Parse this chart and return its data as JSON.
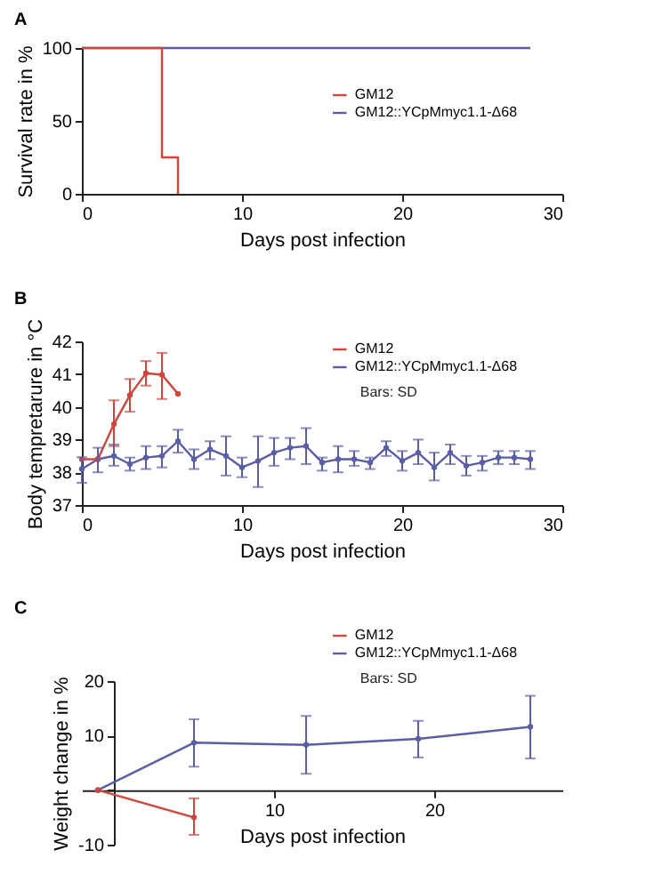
{
  "chart_data": [
    {
      "type": "step",
      "title": "A",
      "xlabel": "Days post infection",
      "ylabel": "Survival rate in %",
      "xlim": [
        0,
        30
      ],
      "xticks": [
        0,
        10,
        20,
        30
      ],
      "ylim": [
        0,
        100
      ],
      "yticks": [
        0,
        50,
        100
      ],
      "legend": "top right",
      "grid": false,
      "marker": "none",
      "series": [
        {
          "name": "GM12",
          "color": "#d0453c",
          "x": [
            0,
            5,
            6
          ],
          "values": [
            100,
            25,
            0
          ]
        },
        {
          "name": "GM12::YCpMmyc1.1-Δ68",
          "color": "#5a5ea6",
          "x": [
            0,
            28
          ],
          "values": [
            100,
            100
          ]
        }
      ]
    },
    {
      "type": "line",
      "title": "B",
      "xlabel": "Days post infection",
      "ylabel": "Body tempretarure in °C",
      "xlim": [
        0,
        30
      ],
      "xticks": [
        0,
        10,
        20,
        30
      ],
      "ylim": [
        37,
        42
      ],
      "yticks": [
        37,
        38,
        39,
        40,
        41,
        42
      ],
      "legend": "top right",
      "grid": false,
      "marker": "circle",
      "annotations": [
        "Bars: SD"
      ],
      "series": [
        {
          "name": "GM12",
          "color": "#d0453c",
          "x": [
            0,
            1,
            2,
            3,
            4,
            5,
            6
          ],
          "values": [
            38.4,
            38.4,
            39.47,
            40.36,
            41.03,
            40.98,
            40.4
          ],
          "errors": [
            null,
            null,
            [
              38.8,
              40.2
            ],
            [
              39.85,
              40.85
            ],
            [
              40.65,
              41.4
            ],
            [
              40.24,
              41.65
            ],
            null
          ]
        },
        {
          "name": "GM12::YCpMmyc1.1-Δ68",
          "color": "#5a5ea6",
          "x": [
            0,
            1,
            2,
            3,
            4,
            5,
            6,
            7,
            8,
            9,
            10,
            11,
            12,
            13,
            14,
            15,
            16,
            17,
            18,
            19,
            20,
            21,
            22,
            23,
            24,
            25,
            26,
            27,
            28
          ],
          "values": [
            38.1,
            38.4,
            38.5,
            38.25,
            38.45,
            38.5,
            38.95,
            38.4,
            38.7,
            38.5,
            38.15,
            38.35,
            38.6,
            38.75,
            38.8,
            38.3,
            38.4,
            38.4,
            38.3,
            38.75,
            38.35,
            38.6,
            38.15,
            38.6,
            38.2,
            38.3,
            38.45,
            38.45,
            38.4
          ],
          "errors": [
            [
              37.68,
              38.46
            ],
            [
              38.0,
              38.75
            ],
            [
              38.2,
              38.85
            ],
            [
              38.05,
              38.45
            ],
            [
              38.1,
              38.8
            ],
            [
              38.15,
              38.8
            ],
            [
              38.6,
              39.3
            ],
            [
              38.1,
              38.7
            ],
            [
              38.4,
              38.95
            ],
            [
              37.9,
              39.1
            ],
            [
              37.85,
              38.45
            ],
            [
              37.55,
              39.1
            ],
            [
              38.2,
              39.05
            ],
            [
              38.4,
              39.05
            ],
            [
              38.25,
              39.35
            ],
            [
              38.05,
              38.45
            ],
            [
              38.0,
              38.8
            ],
            [
              38.2,
              38.65
            ],
            [
              38.1,
              38.45
            ],
            [
              38.5,
              38.95
            ],
            [
              38.05,
              38.65
            ],
            [
              38.25,
              39.0
            ],
            [
              37.75,
              38.6
            ],
            [
              38.25,
              38.85
            ],
            [
              37.9,
              38.5
            ],
            [
              38.05,
              38.5
            ],
            [
              38.25,
              38.65
            ],
            [
              38.25,
              38.65
            ],
            [
              38.1,
              38.65
            ]
          ]
        }
      ]
    },
    {
      "type": "line",
      "title": "C",
      "xlabel": "Days post infection",
      "ylabel": "Weight change in %",
      "xlim": [
        -2,
        28
      ],
      "xticks": [
        10,
        20
      ],
      "ylim": [
        -10,
        20
      ],
      "yticks": [
        -10,
        {
          "value": 0,
          "label": null
        },
        10,
        20
      ],
      "legend": "top right",
      "grid": false,
      "marker": "circle",
      "annotations": [
        "Bars: SD"
      ],
      "series": [
        {
          "name": "GM12",
          "color": "#d0453c",
          "x": [
            -1,
            5
          ],
          "values": [
            0,
            -5
          ],
          "errors": [
            null,
            [
              -8.2,
              -1.5
            ]
          ]
        },
        {
          "name": "GM12::YCpMmyc1.1-Δ68",
          "color": "#5a5ea6",
          "x": [
            -1,
            5,
            12,
            19,
            26
          ],
          "values": [
            0,
            8.7,
            8.3,
            9.4,
            11.6
          ],
          "errors": [
            null,
            [
              4.3,
              13
            ],
            [
              3,
              13.6
            ],
            [
              6,
              12.7
            ],
            [
              5.8,
              17.3
            ]
          ]
        }
      ]
    }
  ]
}
